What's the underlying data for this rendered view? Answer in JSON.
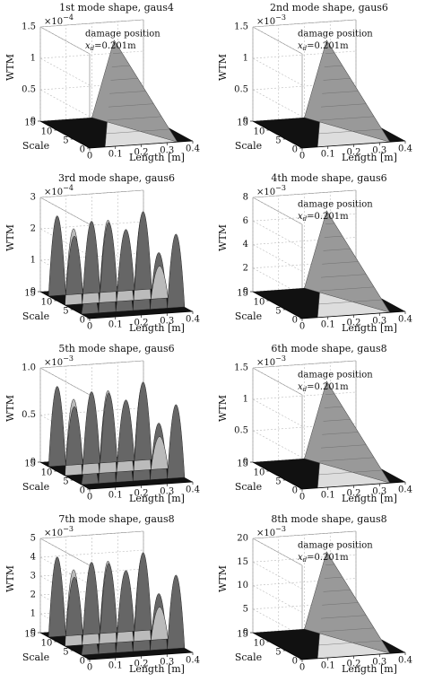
{
  "panels": [
    {
      "title": "1st mode shape, gaus4",
      "z_label": "WTM",
      "z_multiplier": {
        "base": "×10",
        "power": "−4"
      },
      "zlim": [
        0,
        1.5
      ],
      "zticks": [
        0,
        0.5,
        1,
        1.5
      ],
      "x_label": "Length [m]",
      "xlim": [
        0,
        0.4
      ],
      "xticks": [
        0,
        0.1,
        0.2,
        0.3,
        0.4
      ],
      "y_label": "Scale",
      "ylim": [
        0,
        15
      ],
      "yticks": [
        0,
        5,
        10,
        15
      ],
      "annotation": {
        "text": "damage position",
        "symbol": "x",
        "subscript": "d",
        "value": "=0.201m"
      }
    },
    {
      "title": "2nd mode shape, gaus6",
      "z_label": "WTM",
      "z_multiplier": {
        "base": "×10",
        "power": "−3"
      },
      "zlim": [
        0,
        1.5
      ],
      "zticks": [
        0,
        0.5,
        1,
        1.5
      ],
      "x_label": "Length [m]",
      "xlim": [
        0,
        0.4
      ],
      "xticks": [
        0,
        0.1,
        0.2,
        0.3,
        0.4
      ],
      "y_label": "Scale",
      "ylim": [
        0,
        15
      ],
      "yticks": [
        0,
        5,
        10,
        15
      ],
      "annotation": {
        "text": "damage position",
        "symbol": "x",
        "subscript": "d",
        "value": "=0.201m"
      }
    },
    {
      "title": "3rd mode shape, gaus6",
      "z_label": "WTM",
      "z_multiplier": {
        "base": "×10",
        "power": "−4"
      },
      "zlim": [
        0,
        3
      ],
      "zticks": [
        0,
        1,
        2,
        3
      ],
      "x_label": "Length [m]",
      "xlim": [
        0,
        0.4
      ],
      "xticks": [
        0,
        0.1,
        0.2,
        0.3,
        0.4
      ],
      "y_label": "Scale",
      "ylim": [
        0,
        15
      ],
      "yticks": [
        0,
        5,
        10,
        15
      ]
    },
    {
      "title": "4th mode shape, gaus6",
      "z_label": "WTM",
      "z_multiplier": {
        "base": "×10",
        "power": "−3"
      },
      "zlim": [
        0,
        8
      ],
      "zticks": [
        0,
        2,
        4,
        6,
        8
      ],
      "x_label": "Length [m]",
      "xlim": [
        0,
        0.4
      ],
      "xticks": [
        0,
        0.1,
        0.2,
        0.3,
        0.4
      ],
      "y_label": "Scale",
      "ylim": [
        0,
        15
      ],
      "yticks": [
        0,
        5,
        10,
        15
      ],
      "annotation": {
        "text": "damage position",
        "symbol": "x",
        "subscript": "d",
        "value": "=0.201m"
      }
    },
    {
      "title": "5th mode shape, gaus6",
      "z_label": "WTM",
      "z_multiplier": {
        "base": "×10",
        "power": "−3"
      },
      "zlim": [
        0,
        1
      ],
      "zticks": [
        0,
        0.5,
        {
          "value": 1,
          "label": "1.0"
        }
      ],
      "x_label": "Length [m]",
      "xlim": [
        0,
        0.4
      ],
      "xticks": [
        0,
        0.1,
        0.2,
        0.3,
        0.4
      ],
      "y_label": "Scale",
      "ylim": [
        0,
        15
      ],
      "yticks": [
        0,
        5,
        10,
        15
      ]
    },
    {
      "title": "6th mode shape, gaus8",
      "z_label": "WTM",
      "z_multiplier": {
        "base": "×10",
        "power": "−3"
      },
      "zlim": [
        0,
        1.5
      ],
      "zticks": [
        0,
        0.5,
        1,
        1.5
      ],
      "x_label": "Length [m]",
      "xlim": [
        0,
        0.4
      ],
      "xticks": [
        0,
        0.1,
        0.2,
        0.3,
        0.4
      ],
      "y_label": "Scale",
      "ylim": [
        0,
        15
      ],
      "yticks": [
        0,
        5,
        10,
        15
      ],
      "annotation": {
        "text": "damage position",
        "symbol": "x",
        "subscript": "d",
        "value": "=0.201m"
      }
    },
    {
      "title": "7th mode shape, gaus8",
      "z_label": "WTM",
      "z_multiplier": {
        "base": "×10",
        "power": "−3"
      },
      "zlim": [
        0,
        5
      ],
      "zticks": [
        0,
        1,
        2,
        3,
        4,
        5
      ],
      "x_label": "Length [m]",
      "xlim": [
        0,
        0.4
      ],
      "xticks": [
        0,
        0.1,
        0.2,
        0.3,
        0.4
      ],
      "y_label": "Scale",
      "ylim": [
        0,
        15
      ],
      "yticks": [
        0,
        5,
        10,
        15
      ]
    },
    {
      "title": "8th mode shape, gaus8",
      "z_label": "WTM",
      "z_multiplier": {
        "base": "×10",
        "power": "−3"
      },
      "zlim": [
        0,
        20
      ],
      "zticks": [
        0,
        5,
        10,
        15,
        20
      ],
      "x_label": "Length [m]",
      "xlim": [
        0,
        0.4
      ],
      "xticks": [
        0,
        0.1,
        0.2,
        0.3,
        0.4
      ],
      "y_label": "Scale",
      "ylim": [
        0,
        15
      ],
      "yticks": [
        0,
        5,
        10,
        15
      ],
      "annotation": {
        "text": "damage position",
        "symbol": "x",
        "subscript": "d",
        "value": "=0.201m"
      }
    }
  ]
}
